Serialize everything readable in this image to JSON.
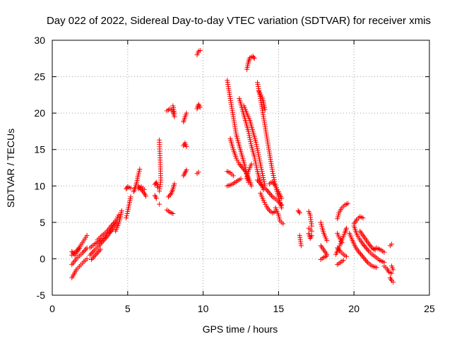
{
  "chart_data": {
    "type": "scatter",
    "title": "Day 022 of 2022, Sidereal Day-to-day VTEC variation (SDTVAR) for receiver xmis",
    "xlabel": "GPS time / hours",
    "ylabel": "SDTVAR / TECUs",
    "xlim": [
      0,
      25
    ],
    "ylim": [
      -5,
      30
    ],
    "xticks": [
      "0",
      "5",
      "10",
      "15",
      "20",
      "25"
    ],
    "yticks": [
      "-5",
      "0",
      "5",
      "10",
      "15",
      "20",
      "25",
      "30"
    ],
    "grid": true,
    "marker": "+",
    "color": "#ff0000",
    "segments": [
      {
        "x": [
          1.3,
          1.6,
          2.0,
          2.3
        ],
        "y": [
          -2.6,
          -1.5,
          -0.6,
          0.0
        ]
      },
      {
        "x": [
          1.3,
          1.6,
          2.0,
          2.3
        ],
        "y": [
          -0.8,
          0.0,
          0.8,
          1.5
        ]
      },
      {
        "x": [
          1.3,
          1.7,
          2.0,
          2.3
        ],
        "y": [
          0.5,
          1.3,
          2.2,
          3.2
        ]
      },
      {
        "x": [
          1.3,
          1.5,
          1.8
        ],
        "y": [
          1.0,
          0.5,
          1.4
        ]
      },
      {
        "x": [
          2.5,
          2.8,
          3.1,
          3.4,
          3.7,
          4.0,
          4.3
        ],
        "y": [
          0.5,
          1.2,
          1.8,
          2.5,
          3.2,
          4.2,
          5.0
        ]
      },
      {
        "x": [
          2.5,
          2.8,
          3.1,
          3.4,
          3.7,
          4.0
        ],
        "y": [
          1.5,
          2.0,
          2.4,
          2.8,
          3.4,
          4.0
        ]
      },
      {
        "x": [
          2.6,
          2.9,
          3.2
        ],
        "y": [
          -0.1,
          0.6,
          1.3
        ]
      },
      {
        "x": [
          3.0,
          3.3,
          3.6,
          3.9,
          4.2,
          4.4
        ],
        "y": [
          2.6,
          3.2,
          3.7,
          4.5,
          5.2,
          6.0
        ]
      },
      {
        "x": [
          4.2,
          4.4,
          4.5,
          4.6
        ],
        "y": [
          3.8,
          4.8,
          5.6,
          6.6
        ]
      },
      {
        "x": [
          4.9,
          5.0,
          5.1,
          5.2
        ],
        "y": [
          5.6,
          6.5,
          7.5,
          8.5
        ]
      },
      {
        "x": [
          4.9,
          5.0,
          5.2
        ],
        "y": [
          9.6,
          9.9,
          9.7
        ]
      },
      {
        "x": [
          5.4,
          5.5,
          5.6,
          5.7,
          5.8
        ],
        "y": [
          9.2,
          9.8,
          10.5,
          11.5,
          12.3
        ]
      },
      {
        "x": [
          5.7,
          5.9,
          6.1,
          6.2
        ],
        "y": [
          10.0,
          9.5,
          9.0,
          8.6
        ]
      },
      {
        "x": [
          5.7,
          5.9,
          6.1
        ],
        "y": [
          9.6,
          9.9,
          9.5
        ]
      },
      {
        "x": [
          6.8,
          6.9,
          7.0
        ],
        "y": [
          10.2,
          10.5,
          9.8
        ]
      },
      {
        "x": [
          6.8,
          6.9
        ],
        "y": [
          8.7,
          8.3
        ]
      },
      {
        "x": [
          7.1,
          7.2,
          7.1
        ],
        "y": [
          16.3,
          10.8,
          9.3
        ]
      },
      {
        "x": [
          7.1
        ],
        "y": [
          7.5
        ]
      },
      {
        "x": [
          7.7,
          7.9,
          8.0,
          8.1
        ],
        "y": [
          8.5,
          9.0,
          9.6,
          10.3
        ]
      },
      {
        "x": [
          7.6,
          7.8,
          8.0
        ],
        "y": [
          6.7,
          6.4,
          6.2
        ]
      },
      {
        "x": [
          7.6,
          7.8,
          8.0,
          8.1
        ],
        "y": [
          20.3,
          20.6,
          20.2,
          19.5
        ]
      },
      {
        "x": [
          8.0,
          8.1
        ],
        "y": [
          21.0,
          20.0
        ]
      },
      {
        "x": [
          8.7,
          8.8,
          8.9
        ],
        "y": [
          18.8,
          19.5,
          20.0
        ]
      },
      {
        "x": [
          8.7,
          8.8,
          8.9
        ],
        "y": [
          15.5,
          15.9,
          15.4
        ]
      },
      {
        "x": [
          8.7,
          8.8,
          8.9
        ],
        "y": [
          11.4,
          11.8,
          12.2
        ]
      },
      {
        "x": [
          9.6,
          9.7,
          9.8
        ],
        "y": [
          20.6,
          21.2,
          20.8
        ]
      },
      {
        "x": [
          9.6,
          9.7,
          9.8
        ],
        "y": [
          28.0,
          28.5,
          28.6
        ]
      },
      {
        "x": [
          9.6,
          9.7
        ],
        "y": [
          11.7,
          11.9
        ]
      },
      {
        "x": [
          11.6,
          11.8,
          12.0,
          12.2,
          12.4,
          12.6,
          12.8,
          13.0
        ],
        "y": [
          24.5,
          22.0,
          19.5,
          17.0,
          15.5,
          14.0,
          12.5,
          10.5
        ]
      },
      {
        "x": [
          11.8,
          12.0,
          12.2,
          12.4,
          12.6,
          12.8,
          13.0,
          13.2
        ],
        "y": [
          16.5,
          15.0,
          13.8,
          13.0,
          12.5,
          12.0,
          11.2,
          10.0
        ]
      },
      {
        "x": [
          11.6,
          11.9,
          12.2,
          12.5
        ],
        "y": [
          10.0,
          10.2,
          10.6,
          11.0
        ]
      },
      {
        "x": [
          11.6,
          11.8,
          12.0
        ],
        "y": [
          12.0,
          11.8,
          11.4
        ]
      },
      {
        "x": [
          12.4,
          12.6,
          12.8,
          13.0,
          13.2,
          13.4,
          13.6,
          13.8,
          14.0
        ],
        "y": [
          22.0,
          20.5,
          19.0,
          17.5,
          15.5,
          14.0,
          12.0,
          10.5,
          9.5
        ]
      },
      {
        "x": [
          12.7,
          12.9,
          13.1,
          13.3,
          13.5,
          13.7,
          13.9,
          14.1
        ],
        "y": [
          21.0,
          20.0,
          19.0,
          17.5,
          16.0,
          14.0,
          12.0,
          10.0
        ]
      },
      {
        "x": [
          12.9,
          13.0,
          13.1,
          13.3,
          13.4
        ],
        "y": [
          26.0,
          27.0,
          27.6,
          27.8,
          27.5
        ]
      },
      {
        "x": [
          12.9,
          13.0,
          13.2
        ],
        "y": [
          11.0,
          12.0,
          13.0
        ]
      },
      {
        "x": [
          13.6,
          13.8,
          14.0,
          14.2,
          14.4,
          14.6,
          14.8,
          15.0,
          15.2
        ],
        "y": [
          24.2,
          22.0,
          19.5,
          17.0,
          14.5,
          12.0,
          10.0,
          8.5,
          7.0
        ]
      },
      {
        "x": [
          13.7,
          13.9,
          14.0,
          14.1
        ],
        "y": [
          23.0,
          22.2,
          21.5,
          20.5
        ]
      },
      {
        "x": [
          13.6,
          13.8,
          14.0,
          14.2,
          14.4,
          14.6,
          14.8,
          15.0,
          15.2
        ],
        "y": [
          10.8,
          10.3,
          9.8,
          9.5,
          9.0,
          8.5,
          8.2,
          7.8,
          7.4
        ]
      },
      {
        "x": [
          13.8,
          14.0,
          14.2,
          14.4,
          14.6,
          14.8
        ],
        "y": [
          9.0,
          8.0,
          7.2,
          6.6,
          6.3,
          6.5
        ]
      },
      {
        "x": [
          14.4,
          14.6,
          14.8,
          15.0,
          15.2
        ],
        "y": [
          10.3,
          10.6,
          10.0,
          9.2,
          8.3
        ]
      },
      {
        "x": [
          14.8,
          15.0,
          15.1,
          15.3
        ],
        "y": [
          7.0,
          6.0,
          5.2,
          4.8
        ]
      },
      {
        "x": [
          16.3,
          16.4
        ],
        "y": [
          6.6,
          6.3
        ]
      },
      {
        "x": [
          16.4,
          16.5
        ],
        "y": [
          3.2,
          1.8
        ]
      },
      {
        "x": [
          17.0,
          17.1,
          17.2
        ],
        "y": [
          6.5,
          6.0,
          4.5
        ]
      },
      {
        "x": [
          17.0,
          17.1,
          17.2
        ],
        "y": [
          3.5,
          2.8,
          3.2
        ]
      },
      {
        "x": [
          17.0,
          17.2
        ],
        "y": [
          4.2,
          3.8
        ]
      },
      {
        "x": [
          17.8,
          17.9,
          18.0,
          18.1,
          18.2
        ],
        "y": [
          5.0,
          4.2,
          3.5,
          3.0,
          2.5
        ]
      },
      {
        "x": [
          17.8,
          18.0,
          18.2
        ],
        "y": [
          1.8,
          1.2,
          0.6
        ]
      },
      {
        "x": [
          17.8,
          18.0,
          18.2
        ],
        "y": [
          -0.1,
          0.2,
          0.4
        ]
      },
      {
        "x": [
          18.9,
          19.0,
          19.2,
          19.4,
          19.6
        ],
        "y": [
          5.5,
          6.3,
          7.0,
          7.4,
          7.6
        ]
      },
      {
        "x": [
          18.8,
          19.0,
          19.2,
          19.4,
          19.5
        ],
        "y": [
          0.6,
          1.5,
          2.6,
          3.6,
          4.2
        ]
      },
      {
        "x": [
          18.9,
          19.1,
          19.3,
          19.5
        ],
        "y": [
          1.5,
          1.0,
          0.6,
          0.3
        ]
      },
      {
        "x": [
          18.9,
          19.1,
          19.3
        ],
        "y": [
          -0.8,
          -0.5,
          -0.2
        ]
      },
      {
        "x": [
          18.9,
          19.0,
          19.2
        ],
        "y": [
          3.5,
          3.0,
          2.2
        ]
      },
      {
        "x": [
          19.7,
          19.9,
          20.1,
          20.3,
          20.5,
          20.7,
          20.9,
          21.2,
          21.5
        ],
        "y": [
          3.5,
          2.5,
          1.6,
          1.0,
          0.5,
          0.0,
          -0.5,
          -1.0,
          -1.2
        ]
      },
      {
        "x": [
          20.0,
          20.2,
          20.4,
          20.6,
          20.8,
          21.0,
          21.2,
          21.4,
          21.7,
          22.0
        ],
        "y": [
          4.5,
          3.3,
          2.6,
          2.0,
          1.5,
          1.0,
          0.6,
          0.3,
          -0.2,
          -0.5
        ]
      },
      {
        "x": [
          20.0,
          20.2,
          20.4,
          20.6
        ],
        "y": [
          4.8,
          5.4,
          5.8,
          5.6
        ]
      },
      {
        "x": [
          20.4,
          20.6,
          20.8,
          21.0,
          21.2,
          21.4
        ],
        "y": [
          3.8,
          3.2,
          2.6,
          2.0,
          1.5,
          1.2
        ]
      },
      {
        "x": [
          21.3,
          21.5,
          21.8,
          22.0
        ],
        "y": [
          1.3,
          1.5,
          1.2,
          0.9
        ]
      },
      {
        "x": [
          22.0,
          22.2,
          22.3,
          22.5
        ],
        "y": [
          -1.0,
          -1.4,
          -1.8,
          -2.0
        ]
      },
      {
        "x": [
          22.4,
          22.5,
          22.6
        ],
        "y": [
          -2.6,
          -3.0,
          -3.2
        ]
      },
      {
        "x": [
          22.4,
          22.5
        ],
        "y": [
          1.8,
          2.0
        ]
      },
      {
        "x": [
          22.5,
          22.6
        ],
        "y": [
          -1.0,
          -1.5
        ]
      }
    ]
  }
}
